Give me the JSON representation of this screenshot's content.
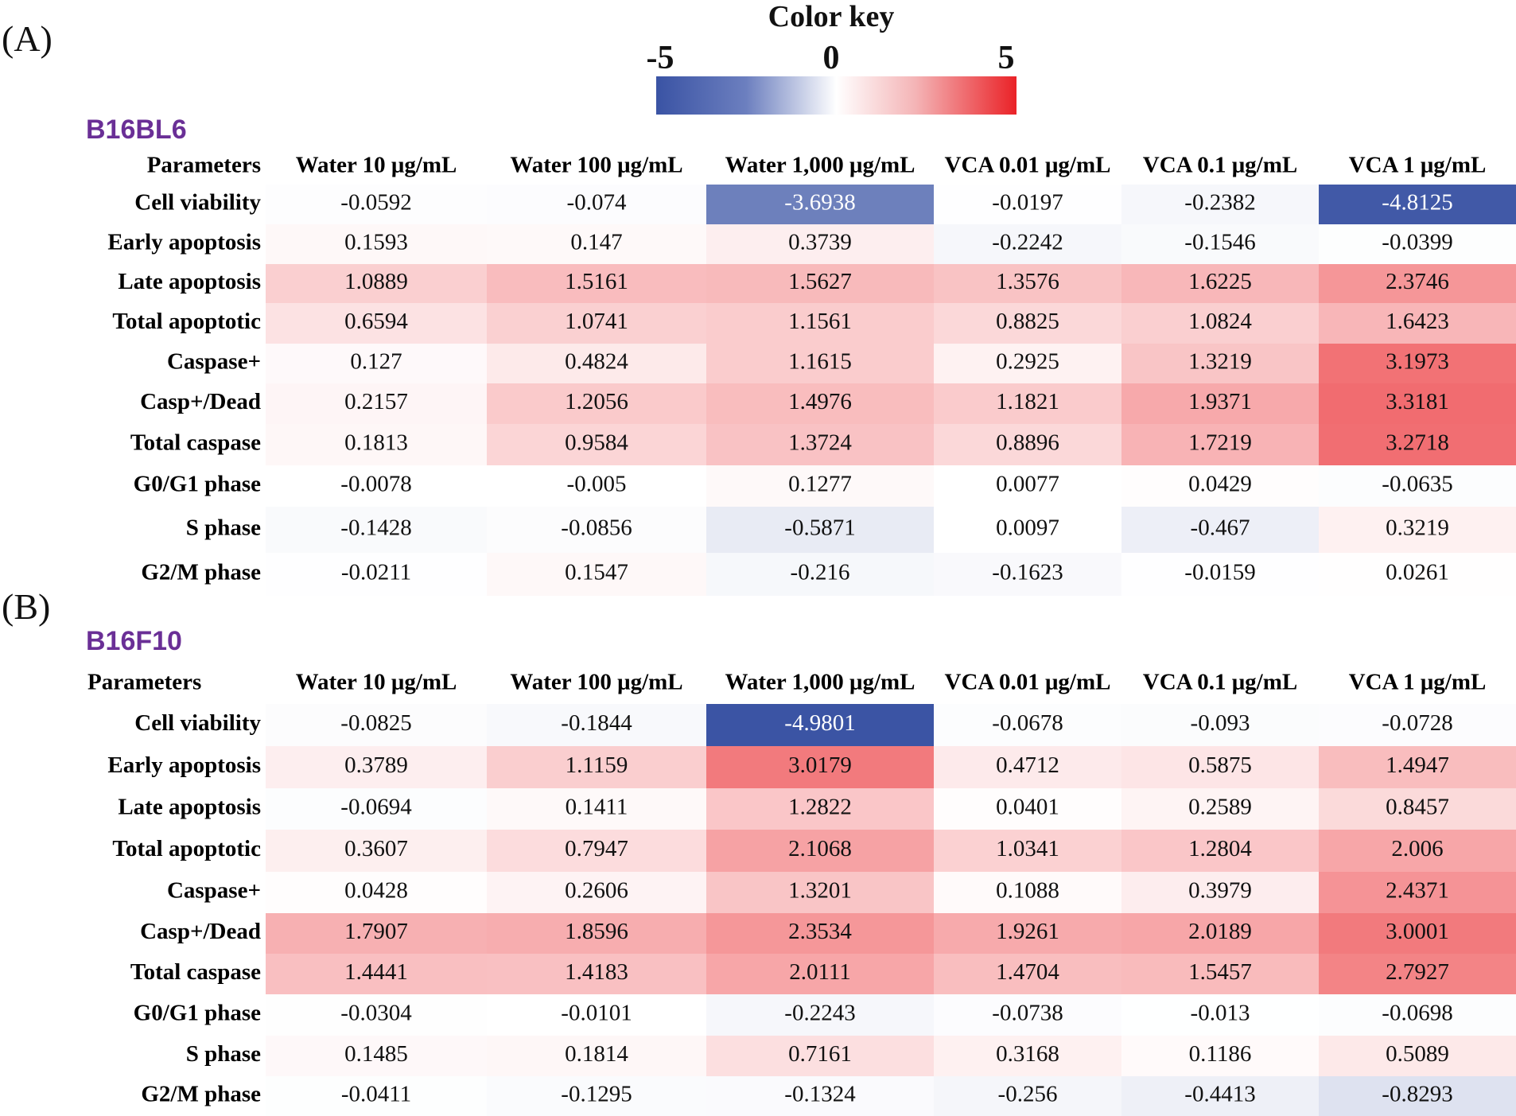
{
  "color_key": {
    "title": "Color key",
    "min_label": "-5",
    "mid_label": "0",
    "max_label": "5",
    "min": -5,
    "max": 5,
    "low_color": "#3a53a4",
    "mid_color": "#ffffff",
    "high_color": "#ea2227"
  },
  "chart_data": [
    {
      "type": "heatmap",
      "panel_label": "(A)",
      "title": "B16BL6",
      "corner_label": "Parameters",
      "columns": [
        "Water 10 μg/mL",
        "Water 100 μg/mL",
        "Water 1,000 μg/mL",
        "VCA 0.01 μg/mL",
        "VCA 0.1 μg/mL",
        "VCA 1 μg/mL"
      ],
      "rows": [
        "Cell viability",
        "Early apoptosis",
        "Late apoptosis",
        "Total apoptotic",
        "Caspase+",
        "Casp+/Dead",
        "Total caspase",
        "G0/G1 phase",
        "S phase",
        "G2/M phase"
      ],
      "value_labels": [
        [
          "-0.0592",
          "-0.074",
          "-3.6938",
          "-0.0197",
          "-0.2382",
          "-4.8125"
        ],
        [
          "0.1593",
          "0.147",
          "0.3739",
          "-0.2242",
          "-0.1546",
          "-0.0399"
        ],
        [
          "1.0889",
          "1.5161",
          "1.5627",
          "1.3576",
          "1.6225",
          "2.3746"
        ],
        [
          "0.6594",
          "1.0741",
          "1.1561",
          "0.8825",
          "1.0824",
          "1.6423"
        ],
        [
          "0.127",
          "0.4824",
          "1.1615",
          "0.2925",
          "1.3219",
          "3.1973"
        ],
        [
          "0.2157",
          "1.2056",
          "1.4976",
          "1.1821",
          "1.9371",
          "3.3181"
        ],
        [
          "0.1813",
          "0.9584",
          "1.3724",
          "0.8896",
          "1.7219",
          "3.2718"
        ],
        [
          "-0.0078",
          "-0.005",
          "0.1277",
          "0.0077",
          "0.0429",
          "-0.0635"
        ],
        [
          "-0.1428",
          "-0.0856",
          "-0.5871",
          "0.0097",
          "-0.467",
          "0.3219"
        ],
        [
          "-0.0211",
          "0.1547",
          "-0.216",
          "-0.1623",
          "-0.0159",
          "0.0261"
        ]
      ],
      "values": [
        [
          -0.0592,
          -0.074,
          -3.6938,
          -0.0197,
          -0.2382,
          -4.8125
        ],
        [
          0.1593,
          0.147,
          0.3739,
          -0.2242,
          -0.1546,
          -0.0399
        ],
        [
          1.0889,
          1.5161,
          1.5627,
          1.3576,
          1.6225,
          2.3746
        ],
        [
          0.6594,
          1.0741,
          1.1561,
          0.8825,
          1.0824,
          1.6423
        ],
        [
          0.127,
          0.4824,
          1.1615,
          0.2925,
          1.3219,
          3.1973
        ],
        [
          0.2157,
          1.2056,
          1.4976,
          1.1821,
          1.9371,
          3.3181
        ],
        [
          0.1813,
          0.9584,
          1.3724,
          0.8896,
          1.7219,
          3.2718
        ],
        [
          -0.0078,
          -0.005,
          0.1277,
          0.0077,
          0.0429,
          -0.0635
        ],
        [
          -0.1428,
          -0.0856,
          -0.5871,
          0.0097,
          -0.467,
          0.3219
        ],
        [
          -0.0211,
          0.1547,
          -0.216,
          -0.1623,
          -0.0159,
          0.0261
        ]
      ]
    },
    {
      "type": "heatmap",
      "panel_label": "(B)",
      "title": "B16F10",
      "corner_label": "Parameters",
      "columns": [
        "Water 10 μg/mL",
        "Water 100 μg/mL",
        "Water 1,000 μg/mL",
        "VCA 0.01 μg/mL",
        "VCA 0.1 μg/mL",
        "VCA 1 μg/mL"
      ],
      "rows": [
        "Cell viability",
        "Early apoptosis",
        "Late apoptosis",
        "Total apoptotic",
        "Caspase+",
        "Casp+/Dead",
        "Total caspase",
        "G0/G1 phase",
        "S phase",
        "G2/M phase"
      ],
      "value_labels": [
        [
          "-0.0825",
          "-0.1844",
          "-4.9801",
          "-0.0678",
          "-0.093",
          "-0.0728"
        ],
        [
          "0.3789",
          "1.1159",
          "3.0179",
          "0.4712",
          "0.5875",
          "1.4947"
        ],
        [
          "-0.0694",
          "0.1411",
          "1.2822",
          "0.0401",
          "0.2589",
          "0.8457"
        ],
        [
          "0.3607",
          "0.7947",
          "2.1068",
          "1.0341",
          "1.2804",
          "2.006"
        ],
        [
          "0.0428",
          "0.2606",
          "1.3201",
          "0.1088",
          "0.3979",
          "2.4371"
        ],
        [
          "1.7907",
          "1.8596",
          "2.3534",
          "1.9261",
          "2.0189",
          "3.0001"
        ],
        [
          "1.4441",
          "1.4183",
          "2.0111",
          "1.4704",
          "1.5457",
          "2.7927"
        ],
        [
          "-0.0304",
          "-0.0101",
          "-0.2243",
          "-0.0738",
          "-0.013",
          "-0.0698"
        ],
        [
          "0.1485",
          "0.1814",
          "0.7161",
          "0.3168",
          "0.1186",
          "0.5089"
        ],
        [
          "-0.0411",
          "-0.1295",
          "-0.1324",
          "-0.256",
          "-0.4413",
          "-0.8293"
        ]
      ],
      "values": [
        [
          -0.0825,
          -0.1844,
          -4.9801,
          -0.0678,
          -0.093,
          -0.0728
        ],
        [
          0.3789,
          1.1159,
          3.0179,
          0.4712,
          0.5875,
          1.4947
        ],
        [
          -0.0694,
          0.1411,
          1.2822,
          0.0401,
          0.2589,
          0.8457
        ],
        [
          0.3607,
          0.7947,
          2.1068,
          1.0341,
          1.2804,
          2.006
        ],
        [
          0.0428,
          0.2606,
          1.3201,
          0.1088,
          0.3979,
          2.4371
        ],
        [
          1.7907,
          1.8596,
          2.3534,
          1.9261,
          2.0189,
          3.0001
        ],
        [
          1.4441,
          1.4183,
          2.0111,
          1.4704,
          1.5457,
          2.7927
        ],
        [
          -0.0304,
          -0.0101,
          -0.2243,
          -0.0738,
          -0.013,
          -0.0698
        ],
        [
          0.1485,
          0.1814,
          0.7161,
          0.3168,
          0.1186,
          0.5089
        ],
        [
          -0.0411,
          -0.1295,
          -0.1324,
          -0.256,
          -0.4413,
          -0.8293
        ]
      ]
    }
  ]
}
